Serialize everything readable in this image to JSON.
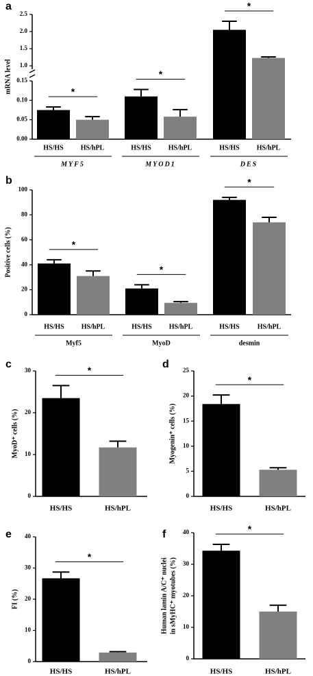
{
  "chart_data": [
    {
      "type": "bar",
      "panel": "a",
      "ylabel": [
        "mRNA level"
      ],
      "categories": [
        "HS/HS",
        "HS/hPL",
        "HS/HS",
        "HS/hPL",
        "HS/HS",
        "HS/hPL"
      ],
      "groups": [
        "MYF5",
        "MYOD1",
        "DES"
      ],
      "values": [
        0.075,
        0.05,
        0.11,
        0.058,
        2.05,
        1.23
      ],
      "errors": [
        0.008,
        0.008,
        0.018,
        0.018,
        0.25,
        0.03
      ],
      "colors": [
        "#000000",
        "#808080"
      ],
      "ylim": [
        0,
        2.5
      ],
      "ybreak": [
        0.15,
        0.9
      ],
      "yticks": [
        {
          "value": 0,
          "label": "0.00"
        },
        {
          "value": 0.05,
          "label": "0.05"
        },
        {
          "value": 0.1,
          "label": "0.10"
        },
        {
          "value": 0.15,
          "label": "0.15"
        },
        {
          "value": 1,
          "label": "1.0"
        },
        1.5,
        {
          "value": 2,
          "label": "2.0"
        },
        2.5
      ],
      "annotations": [
        "*",
        "*",
        "*"
      ]
    },
    {
      "type": "bar",
      "panel": "b",
      "ylabel": [
        "Positive cells (%)"
      ],
      "categories": [
        "HS/HS",
        "HS/hPL",
        "HS/HS",
        "HS/hPL",
        "HS/HS",
        "HS/hPL"
      ],
      "groups": [
        "Myf5",
        "MyoD",
        "desmin"
      ],
      "values": [
        41,
        31,
        21,
        9.5,
        92,
        74
      ],
      "errors": [
        3,
        4,
        3,
        1,
        2,
        4
      ],
      "colors": [
        "#000000",
        "#808080"
      ],
      "ylim": [
        0,
        100
      ],
      "yticks": [
        0,
        20,
        40,
        60,
        80,
        100
      ],
      "annotations": [
        "*",
        "*",
        "*"
      ]
    },
    {
      "type": "bar",
      "panel": "c",
      "ylabel": [
        "MyoD⁺ cells (%)"
      ],
      "categories": [
        "HS/HS",
        "HS/hPL"
      ],
      "values": [
        23.5,
        11.7
      ],
      "errors": [
        3,
        1.5
      ],
      "colors": [
        "#000000",
        "#808080"
      ],
      "ylim": [
        0,
        30
      ],
      "yticks": [
        0,
        10,
        20,
        30
      ],
      "annotations": [
        "*"
      ]
    },
    {
      "type": "bar",
      "panel": "d",
      "ylabel": [
        "Myogenin⁺ cells (%)"
      ],
      "categories": [
        "HS/HS",
        "HS/hPL"
      ],
      "values": [
        18.4,
        5.3
      ],
      "errors": [
        1.8,
        0.4
      ],
      "colors": [
        "#000000",
        "#808080"
      ],
      "ylim": [
        0,
        25
      ],
      "yticks": [
        0,
        5,
        10,
        15,
        20,
        25
      ],
      "annotations": [
        "*"
      ]
    },
    {
      "type": "bar",
      "panel": "e",
      "ylabel": [
        "FI (%)"
      ],
      "categories": [
        "HS/HS",
        "HS/hPL"
      ],
      "values": [
        26.7,
        2.9
      ],
      "errors": [
        2,
        0.3
      ],
      "colors": [
        "#000000",
        "#808080"
      ],
      "ylim": [
        0,
        40
      ],
      "yticks": [
        0,
        10,
        20,
        30,
        40
      ],
      "annotations": [
        "*"
      ]
    },
    {
      "type": "bar",
      "panel": "f",
      "ylabel": [
        "Human lamin A/C⁺ nuclei",
        "in sMyHC⁺ myotubes (%)"
      ],
      "categories": [
        "HS/HS",
        "HS/hPL"
      ],
      "values": [
        34.3,
        15
      ],
      "errors": [
        2,
        2
      ],
      "colors": [
        "#000000",
        "#808080"
      ],
      "ylim": [
        0,
        40
      ],
      "yticks": [
        0,
        10,
        20,
        30,
        40
      ],
      "annotations": [
        "*"
      ]
    }
  ]
}
